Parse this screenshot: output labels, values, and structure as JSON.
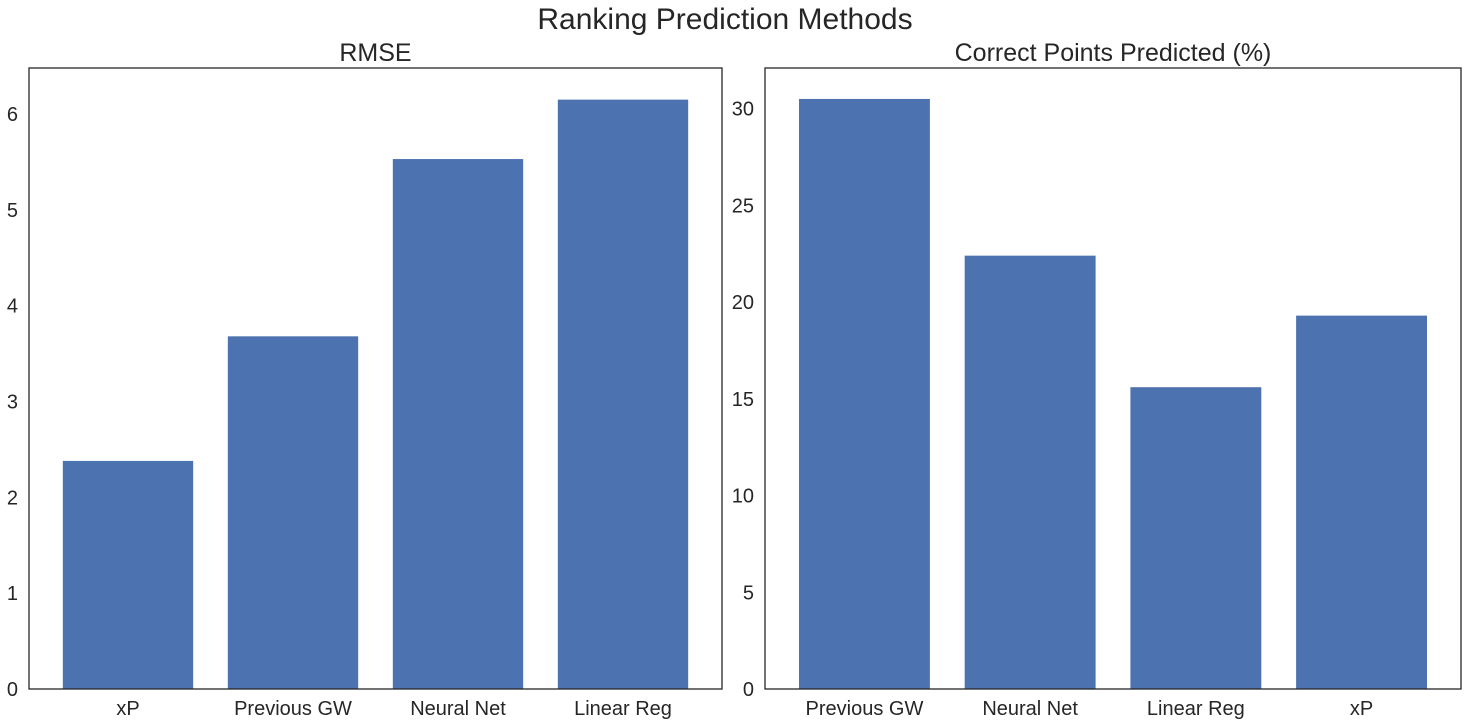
{
  "figure_title": "Ranking Prediction Methods",
  "colors": {
    "bar": "#4c72b0",
    "axis": "#262626",
    "background": "#ffffff"
  },
  "chart_data": [
    {
      "type": "bar",
      "title": "RMSE",
      "categories": [
        "xP",
        "Previous GW",
        "Neural Net",
        "Linear Reg"
      ],
      "values": [
        2.38,
        3.68,
        5.53,
        6.15
      ],
      "yticks": [
        0,
        1,
        2,
        3,
        4,
        5,
        6
      ],
      "ylim": [
        0,
        6.48
      ],
      "xlabel": "",
      "ylabel": "",
      "grid": false
    },
    {
      "type": "bar",
      "title": "Correct Points Predicted (%)",
      "categories": [
        "Previous GW",
        "Neural Net",
        "Linear Reg",
        "xP"
      ],
      "values": [
        30.5,
        22.4,
        15.6,
        19.3
      ],
      "yticks": [
        0,
        5,
        10,
        15,
        20,
        25,
        30
      ],
      "ylim": [
        0,
        32.1
      ],
      "xlabel": "",
      "ylabel": "",
      "grid": false
    }
  ]
}
